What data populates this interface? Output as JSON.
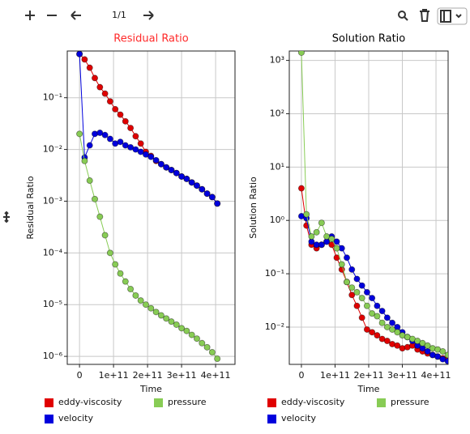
{
  "toolbar": {
    "page": "1/1"
  },
  "chart_data": [
    {
      "type": "line",
      "title": "Residual Ratio",
      "title_color": "#ff2a2a",
      "xlabel": "Time",
      "ylabel": "Residual Ratio",
      "log_y": true,
      "grid": true,
      "markers": true,
      "xlim": [
        -36000000000.0,
        457000000000.0
      ],
      "xticks": [
        0,
        {
          "value": 100000000000.0,
          "label": "1e+11"
        },
        {
          "value": 200000000000.0,
          "label": "2e+11"
        },
        {
          "value": 300000000000.0,
          "label": "3e+11"
        },
        {
          "value": 400000000000.0,
          "label": "4e+11"
        }
      ],
      "ylim": [
        7e-07,
        0.8
      ],
      "yticks": [
        {
          "value": 1e-06,
          "label": "10⁻⁶"
        },
        {
          "value": 1e-05,
          "label": "10⁻⁵"
        },
        {
          "value": 0.0001,
          "label": "10⁻⁴"
        },
        {
          "value": 0.001,
          "label": "10⁻³"
        },
        {
          "value": 0.01,
          "label": "10⁻²"
        },
        {
          "value": 0.1,
          "label": "10⁻¹"
        }
      ],
      "x": [
        0,
        15000000000.0,
        30000000000.0,
        45000000000.0,
        60000000000.0,
        75000000000.0,
        90000000000.0,
        105000000000.0,
        120000000000.0,
        135000000000.0,
        150000000000.0,
        165000000000.0,
        180000000000.0,
        195000000000.0,
        210000000000.0,
        225000000000.0,
        240000000000.0,
        255000000000.0,
        270000000000.0,
        285000000000.0,
        300000000000.0,
        315000000000.0,
        330000000000.0,
        345000000000.0,
        360000000000.0,
        375000000000.0,
        390000000000.0,
        405000000000.0
      ],
      "series": [
        {
          "name": "eddy-viscosity",
          "color": "#e00000",
          "values": [
            0.7,
            0.55,
            0.38,
            0.24,
            0.16,
            0.12,
            0.085,
            0.06,
            0.047,
            0.035,
            0.026,
            0.018,
            0.013,
            0.009,
            0.0075,
            0.006,
            0.0052,
            0.0045,
            0.004,
            0.0035,
            0.003,
            0.0027,
            0.0023,
            0.002,
            0.0017,
            0.0014,
            0.0012,
            0.0009
          ]
        },
        {
          "name": "velocity",
          "color": "#0000dd",
          "values": [
            0.7,
            0.007,
            0.012,
            0.02,
            0.021,
            0.019,
            0.016,
            0.013,
            0.014,
            0.012,
            0.011,
            0.01,
            0.009,
            0.008,
            0.0072,
            0.0062,
            0.0052,
            0.0045,
            0.004,
            0.0035,
            0.003,
            0.0027,
            0.0023,
            0.002,
            0.0017,
            0.0014,
            0.0012,
            0.0009
          ]
        },
        {
          "name": "pressure",
          "color": "#88cc55",
          "values": [
            0.02,
            0.006,
            0.0025,
            0.0011,
            0.0005,
            0.00022,
            0.0001,
            6e-05,
            4e-05,
            2.8e-05,
            2e-05,
            1.5e-05,
            1.2e-05,
            1e-05,
            8.5e-06,
            7.2e-06,
            6.2e-06,
            5.4e-06,
            4.7e-06,
            4.1e-06,
            3.5e-06,
            3.1e-06,
            2.6e-06,
            2.2e-06,
            1.8e-06,
            1.5e-06,
            1.2e-06,
            9e-07
          ]
        }
      ]
    },
    {
      "type": "line",
      "title": "Solution Ratio",
      "title_color": "#000000",
      "xlabel": "Time",
      "ylabel": "Solution Ratio",
      "log_y": true,
      "grid": true,
      "markers": true,
      "xlim": [
        -36000000000.0,
        436000000000.0
      ],
      "xticks": [
        0,
        {
          "value": 100000000000.0,
          "label": "1e+11"
        },
        {
          "value": 200000000000.0,
          "label": "2e+11"
        },
        {
          "value": 300000000000.0,
          "label": "3e+11"
        },
        {
          "value": 400000000000.0,
          "label": "4e+11"
        }
      ],
      "ylim": [
        0.002,
        1500
      ],
      "yticks": [
        {
          "value": 0.01,
          "label": "10⁻²"
        },
        {
          "value": 0.1,
          "label": "10⁻¹"
        },
        {
          "value": 1,
          "label": "10⁰"
        },
        {
          "value": 10,
          "label": "10¹"
        },
        {
          "value": 100,
          "label": "10²"
        },
        {
          "value": 1000,
          "label": "10³"
        }
      ],
      "x": [
        0,
        15000000000.0,
        30000000000.0,
        45000000000.0,
        60000000000.0,
        75000000000.0,
        90000000000.0,
        105000000000.0,
        120000000000.0,
        135000000000.0,
        150000000000.0,
        165000000000.0,
        180000000000.0,
        195000000000.0,
        210000000000.0,
        225000000000.0,
        240000000000.0,
        255000000000.0,
        270000000000.0,
        285000000000.0,
        300000000000.0,
        315000000000.0,
        330000000000.0,
        345000000000.0,
        360000000000.0,
        375000000000.0,
        390000000000.0,
        405000000000.0,
        420000000000.0,
        435000000000.0
      ],
      "series": [
        {
          "name": "eddy-viscosity",
          "color": "#e00000",
          "values": [
            4,
            0.8,
            0.35,
            0.3,
            0.35,
            0.4,
            0.35,
            0.2,
            0.12,
            0.07,
            0.04,
            0.025,
            0.015,
            0.009,
            0.008,
            0.007,
            0.006,
            0.0055,
            0.0048,
            0.0045,
            0.004,
            0.0042,
            0.0045,
            0.0038,
            0.0035,
            0.0032,
            0.003,
            0.0028,
            0.0026,
            0.0025
          ]
        },
        {
          "name": "velocity",
          "color": "#0000dd",
          "values": [
            1.2,
            1.1,
            0.4,
            0.35,
            0.35,
            0.4,
            0.5,
            0.4,
            0.3,
            0.2,
            0.12,
            0.08,
            0.06,
            0.045,
            0.035,
            0.025,
            0.02,
            0.015,
            0.012,
            0.01,
            0.008,
            0.0065,
            0.0055,
            0.0045,
            0.004,
            0.0035,
            0.003,
            0.0028,
            0.0025,
            0.0023
          ]
        },
        {
          "name": "pressure",
          "color": "#88cc55",
          "values": [
            1400,
            1.3,
            0.5,
            0.6,
            0.9,
            0.5,
            0.45,
            0.3,
            0.15,
            0.07,
            0.055,
            0.045,
            0.035,
            0.025,
            0.018,
            0.016,
            0.012,
            0.01,
            0.009,
            0.008,
            0.007,
            0.0065,
            0.006,
            0.0055,
            0.005,
            0.0045,
            0.004,
            0.0038,
            0.0035,
            0.003
          ]
        }
      ]
    }
  ]
}
